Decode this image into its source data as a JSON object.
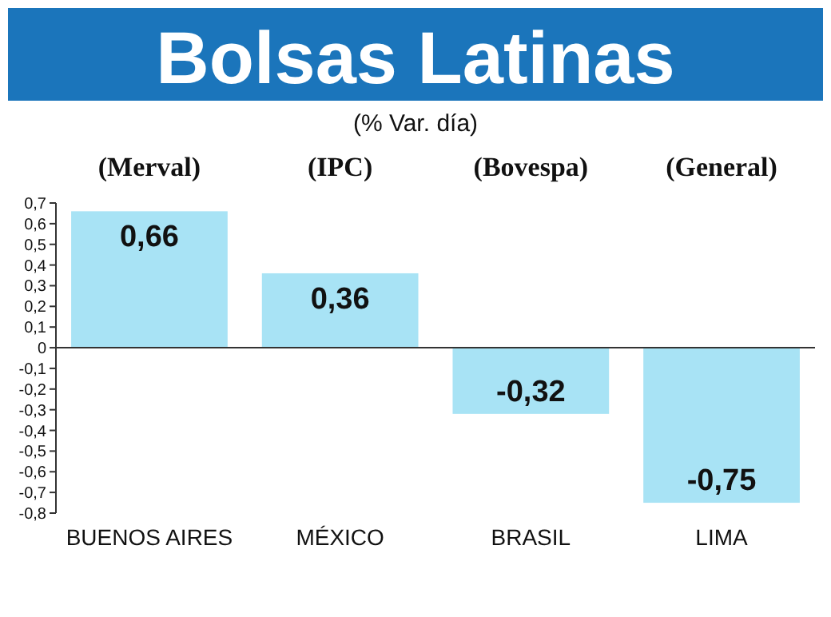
{
  "chart_data": {
    "type": "bar",
    "title": "Bolsas Latinas",
    "subtitle": "(% Var. día)",
    "categories": [
      "BUENOS AIRES",
      "MÉXICO",
      "BRASIL",
      "LIMA"
    ],
    "values": [
      0.66,
      0.36,
      -0.32,
      -0.75
    ],
    "value_labels": [
      "0,66",
      "0,36",
      "-0,32",
      "-0,75"
    ],
    "color": "#a8e3f5",
    "ylim": [
      -0.8,
      0.7
    ],
    "yticks": [
      {
        "value": 0.7,
        "label": "0,7"
      },
      {
        "value": 0.6,
        "label": "0,6"
      },
      {
        "value": 0.5,
        "label": "0,5"
      },
      {
        "value": 0.4,
        "label": "0,4"
      },
      {
        "value": 0.3,
        "label": "0,3"
      },
      {
        "value": 0.2,
        "label": "0,2"
      },
      {
        "value": 0.1,
        "label": "0,1"
      },
      {
        "value": 0,
        "label": "0"
      },
      {
        "value": -0.1,
        "label": "-0,1"
      },
      {
        "value": -0.2,
        "label": "-0,2"
      },
      {
        "value": -0.3,
        "label": "-0,3"
      },
      {
        "value": -0.4,
        "label": "-0,4"
      },
      {
        "value": -0.5,
        "label": "-0,5"
      },
      {
        "value": -0.6,
        "label": "-0,6"
      },
      {
        "value": -0.7,
        "label": "-0,7"
      },
      {
        "value": -0.8,
        "label": "-0,8"
      }
    ],
    "annotations": [
      "(Merval)",
      "(IPC)",
      "(Bovespa)",
      "(General)"
    ]
  }
}
